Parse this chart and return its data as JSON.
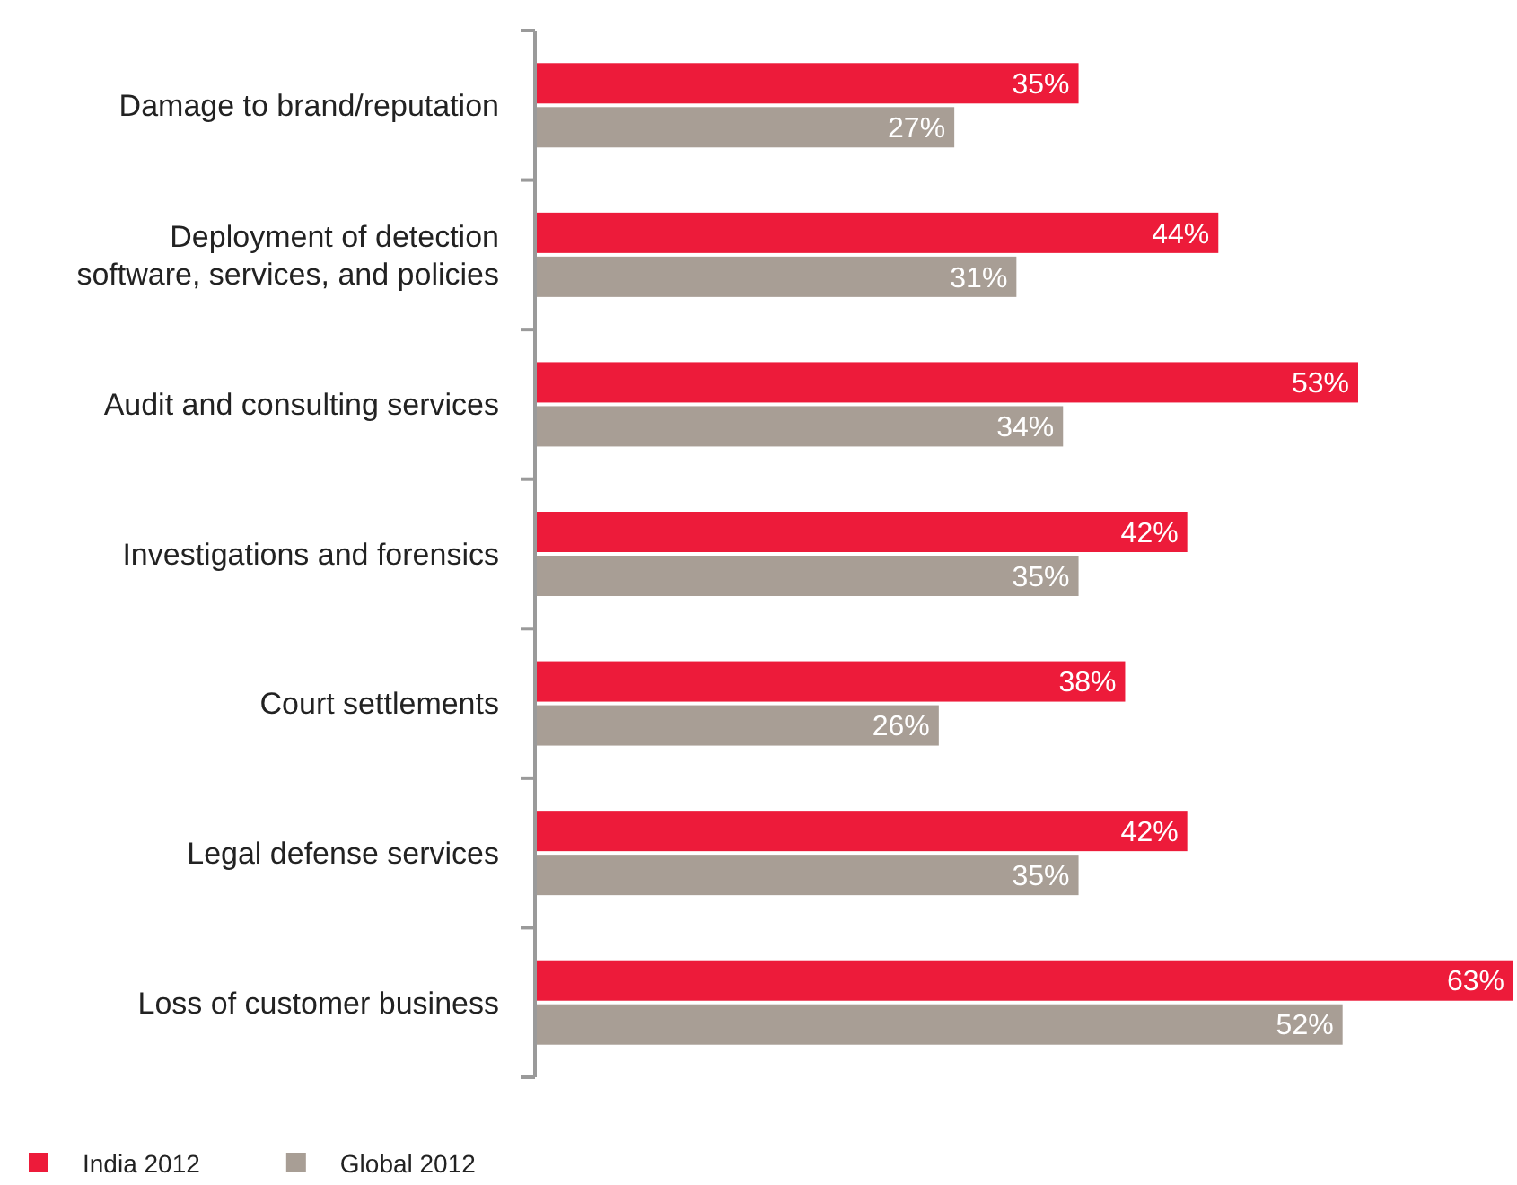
{
  "chart_data": {
    "type": "bar",
    "orientation": "horizontal",
    "categories": [
      "Damage to brand/reputation",
      "Deployment of detection\nsoftware, services, and policies",
      "Audit and consulting services",
      "Investigations and forensics",
      "Court settlements",
      "Legal defense services",
      "Loss of customer business"
    ],
    "series": [
      {
        "name": "India 2012",
        "color": "#ed1b3a",
        "values": [
          35,
          44,
          53,
          42,
          38,
          42,
          63
        ],
        "value_labels": [
          "35%",
          "44%",
          "53%",
          "42%",
          "38%",
          "42%",
          "63%"
        ]
      },
      {
        "name": "Global 2012",
        "color": "#a89e95",
        "values": [
          27,
          31,
          34,
          35,
          26,
          35,
          52
        ],
        "value_labels": [
          "27%",
          "31%",
          "34%",
          "35%",
          "26%",
          "35%",
          "52%"
        ]
      }
    ],
    "legend": "bottom left"
  }
}
